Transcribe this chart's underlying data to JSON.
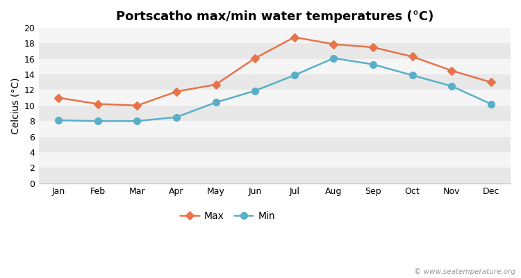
{
  "title": "Portscatho max/min water temperatures (°C)",
  "ylabel": "Celcius (°C)",
  "months": [
    "Jan",
    "Feb",
    "Mar",
    "Apr",
    "May",
    "Jun",
    "Jul",
    "Aug",
    "Sep",
    "Oct",
    "Nov",
    "Dec"
  ],
  "max_values": [
    11.0,
    10.2,
    10.0,
    11.8,
    12.7,
    16.1,
    18.8,
    17.9,
    17.5,
    16.3,
    14.5,
    13.0
  ],
  "min_values": [
    8.1,
    8.0,
    8.0,
    8.5,
    10.4,
    11.9,
    13.9,
    16.1,
    15.3,
    13.9,
    12.5,
    10.2
  ],
  "max_color": "#e8734a",
  "min_color": "#5aafc8",
  "background_color": "#ffffff",
  "band_color_a": "#e8e8e8",
  "band_color_b": "#f5f5f5",
  "ylim": [
    0,
    20
  ],
  "yticks": [
    0,
    2,
    4,
    6,
    8,
    10,
    12,
    14,
    16,
    18,
    20
  ],
  "line_width": 1.8,
  "title_fontsize": 13,
  "axis_label_fontsize": 10,
  "tick_fontsize": 9,
  "legend_fontsize": 10,
  "watermark": "© www.seatemperature.org"
}
